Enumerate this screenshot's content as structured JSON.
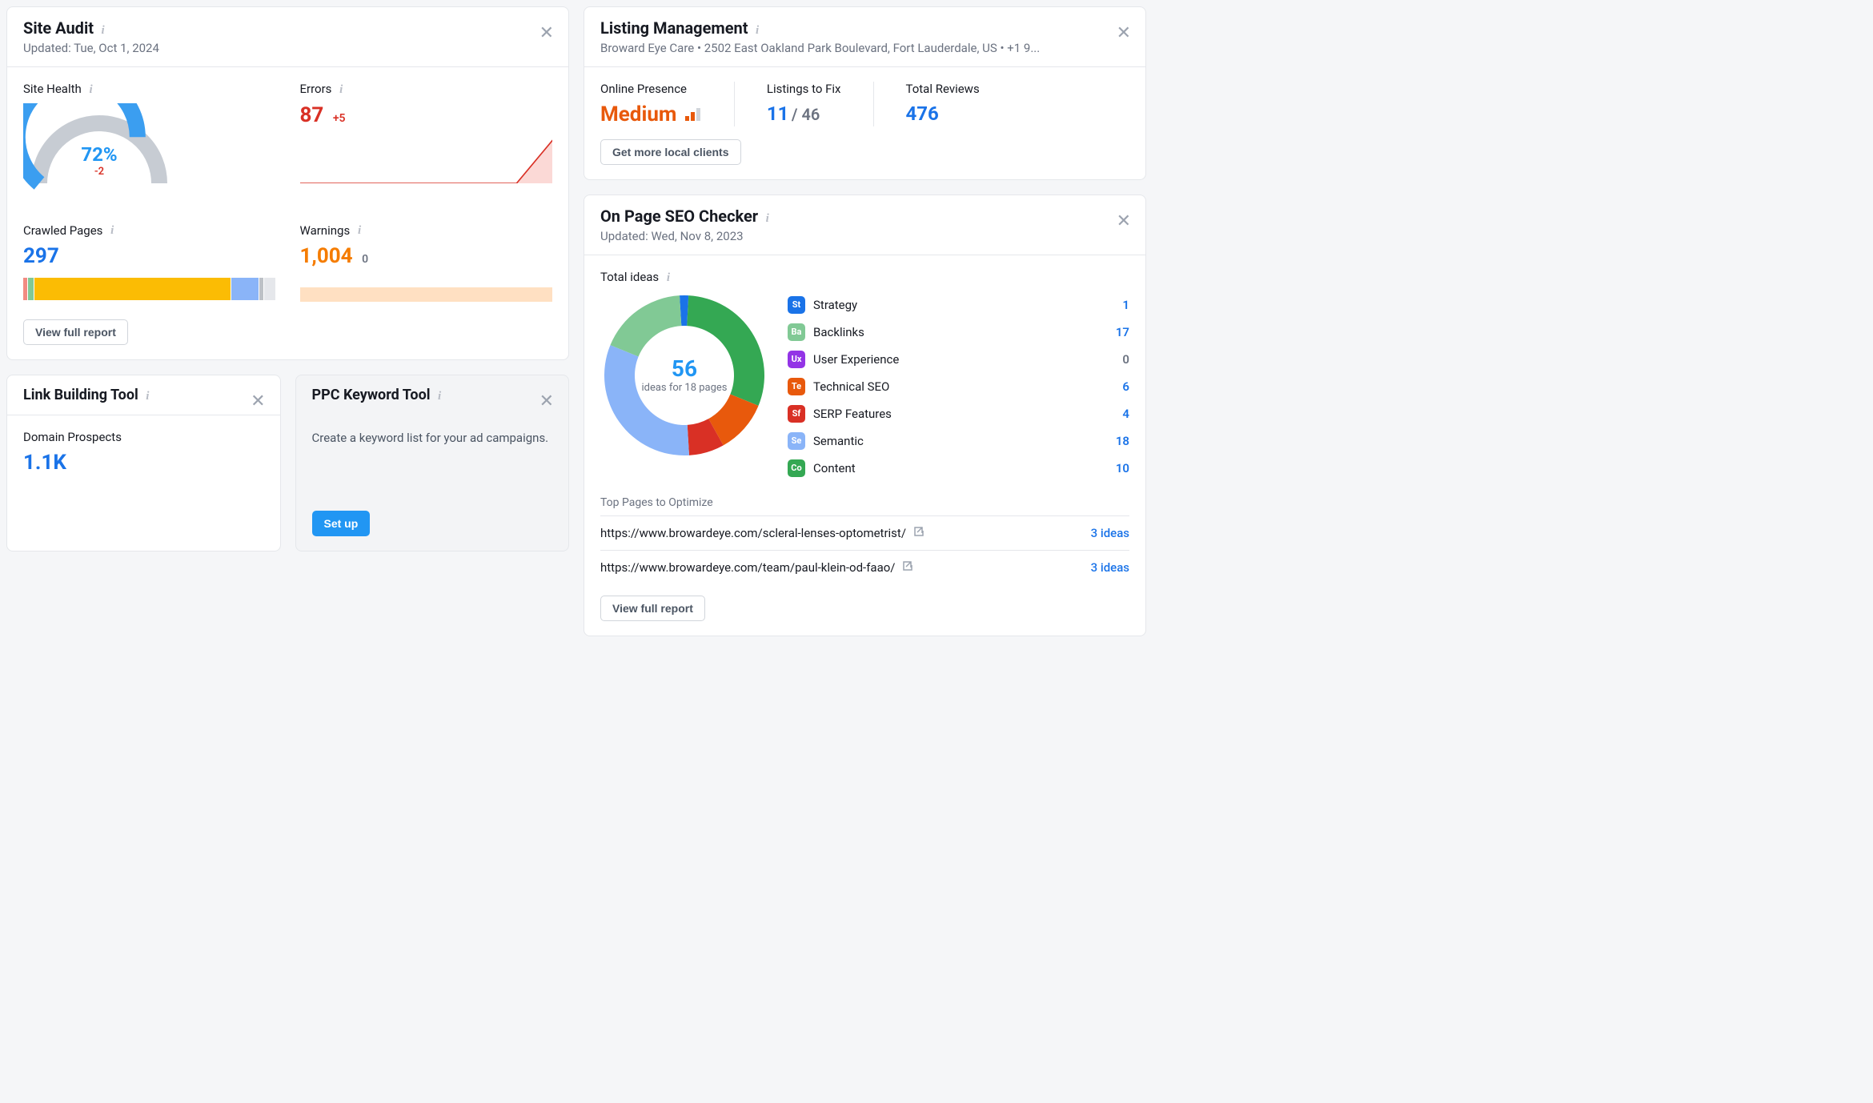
{
  "site_audit": {
    "title": "Site Audit",
    "updated": "Updated: Tue, Oct 1, 2024",
    "site_health": {
      "label": "Site Health",
      "value": "72%",
      "change": "-2",
      "gauge_value": 72,
      "gauge_color": "#3b9ef0",
      "gauge_bg": "#c7ccd3"
    },
    "errors": {
      "label": "Errors",
      "value": "87",
      "delta": "+5",
      "color": "#d93025",
      "spark": {
        "points": [
          0,
          0,
          0,
          0,
          0,
          0,
          0,
          32
        ],
        "fill": "#fbd9d6",
        "stroke": "#d93025"
      }
    },
    "crawled": {
      "label": "Crawled Pages",
      "value": "297",
      "segments": [
        {
          "color": "#f28b82",
          "pct": 1.5
        },
        {
          "color": "#81c995",
          "pct": 2.5
        },
        {
          "color": "#fbbc04",
          "pct": 79
        },
        {
          "color": "#8ab4f8",
          "pct": 11
        },
        {
          "color": "#bdc1c6",
          "pct": 1.5
        },
        {
          "color": "#e5e7eb",
          "pct": 4.5
        }
      ]
    },
    "warnings": {
      "label": "Warnings",
      "value": "1,004",
      "delta": "0",
      "color": "#f57c00",
      "bar_color": "#ffe0c2"
    },
    "view_report": "View full report"
  },
  "link_building": {
    "title": "Link Building Tool",
    "metric_label": "Domain Prospects",
    "value": "1.1K"
  },
  "ppc": {
    "title": "PPC Keyword Tool",
    "desc": "Create a keyword list for your ad campaigns.",
    "cta": "Set up"
  },
  "listing": {
    "title": "Listing Management",
    "subtitle": "Broward Eye Care • 2502 East Oakland Park Boulevard, Fort Lauderdale, US • +1 9...",
    "presence": {
      "label": "Online Presence",
      "value": "Medium",
      "color": "#e8590c"
    },
    "to_fix": {
      "label": "Listings to Fix",
      "value": "11",
      "total": "/ 46"
    },
    "reviews": {
      "label": "Total Reviews",
      "value": "476"
    },
    "cta": "Get more local clients"
  },
  "seo_checker": {
    "title": "On Page SEO Checker",
    "updated": "Updated: Wed, Nov 8, 2023",
    "total_ideas_label": "Total ideas",
    "total": "56",
    "sub": "ideas for 18 pages",
    "donut_segments": [
      {
        "color": "#1a73e8",
        "value": 1
      },
      {
        "color": "#34a853",
        "value": 17
      },
      {
        "color": "#9334e6",
        "value": 0
      },
      {
        "color": "#e8590c",
        "value": 6
      },
      {
        "color": "#d93025",
        "value": 4
      },
      {
        "color": "#8ab4f8",
        "value": 18
      },
      {
        "color": "#81c995",
        "value": 10
      }
    ],
    "legend": [
      {
        "badge": "St",
        "bg": "#1a73e8",
        "label": "Strategy",
        "value": "1",
        "link": true
      },
      {
        "badge": "Ba",
        "bg": "#81c995",
        "label": "Backlinks",
        "value": "17",
        "link": true
      },
      {
        "badge": "Ux",
        "bg": "#9334e6",
        "label": "User Experience",
        "value": "0",
        "link": false
      },
      {
        "badge": "Te",
        "bg": "#e8590c",
        "label": "Technical SEO",
        "value": "6",
        "link": true
      },
      {
        "badge": "Sf",
        "bg": "#d93025",
        "label": "SERP Features",
        "value": "4",
        "link": true
      },
      {
        "badge": "Se",
        "bg": "#8ab4f8",
        "label": "Semantic",
        "value": "18",
        "link": true
      },
      {
        "badge": "Co",
        "bg": "#34a853",
        "label": "Content",
        "value": "10",
        "link": true
      }
    ],
    "top_pages_label": "Top Pages to Optimize",
    "top_pages": [
      {
        "url": "https://www.browardeye.com/scleral-lenses-optometrist/",
        "ideas": "3 ideas"
      },
      {
        "url": "https://www.browardeye.com/team/paul-klein-od-faao/",
        "ideas": "3 ideas"
      }
    ],
    "view_report": "View full report"
  }
}
